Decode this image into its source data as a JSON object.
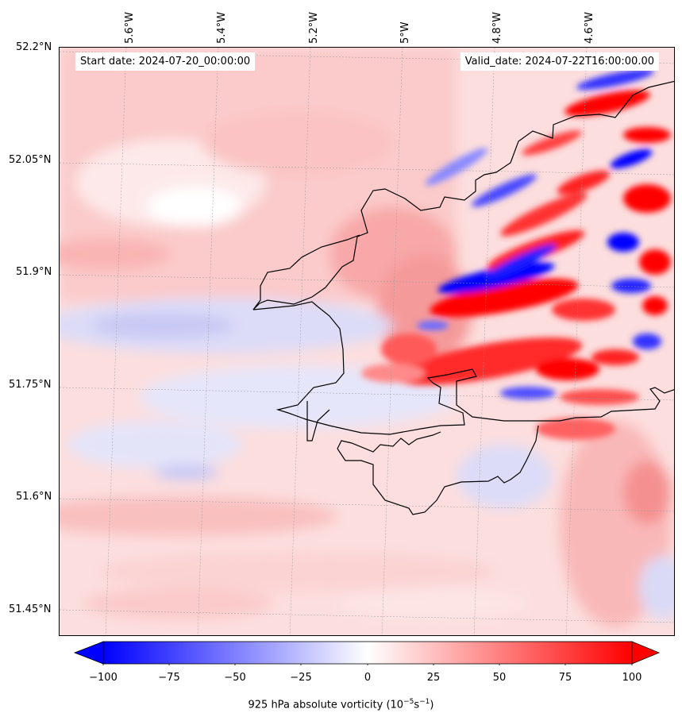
{
  "header": {
    "start_date": "Start date: 2024-07-20_00:00:00",
    "valid_date": "Valid_date: 2024-07-22T16:00:00.00"
  },
  "axes": {
    "lat_labels": [
      "52.2°N",
      "52.05°N",
      "51.9°N",
      "51.75°N",
      "51.6°N",
      "51.45°N"
    ],
    "lon_labels": [
      "5.6°W",
      "5.4°W",
      "5.2°W",
      "5°W",
      "4.8°W",
      "4.6°W"
    ]
  },
  "colorbar": {
    "ticks": [
      "−100",
      "−75",
      "−50",
      "−25",
      "0",
      "25",
      "50",
      "75",
      "100"
    ],
    "label_main": "925 hPa absolute vorticity (10",
    "label_exp1": "−5",
    "label_mid": "s",
    "label_exp2": "−1",
    "label_end": ")",
    "range": [
      -100,
      100
    ],
    "colormap": "bwr"
  },
  "colors": {
    "neg": "#0000ff",
    "pos": "#ff0000",
    "coast": "#000000"
  }
}
